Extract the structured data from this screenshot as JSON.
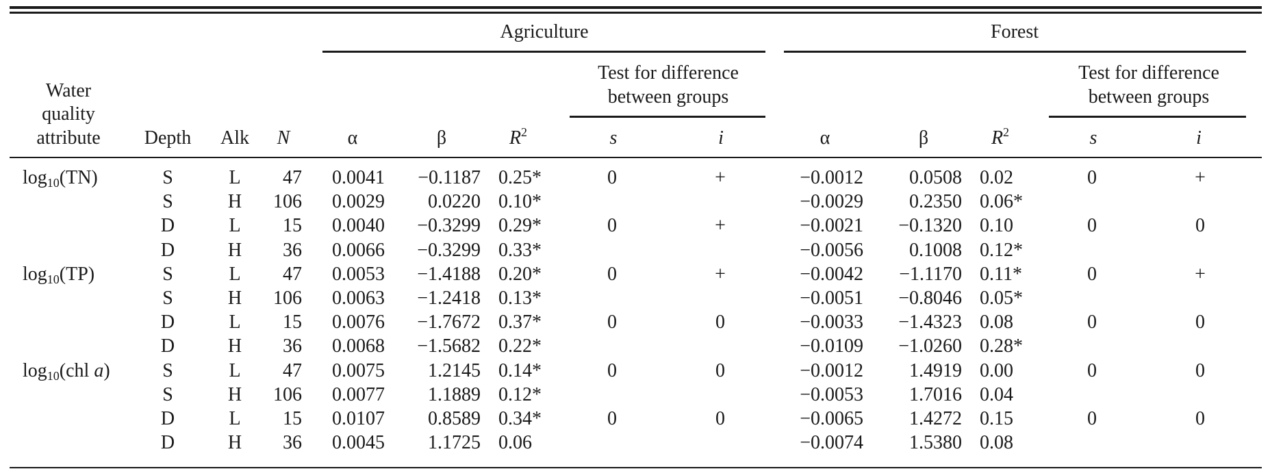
{
  "table": {
    "groups": {
      "agriculture": "Agriculture",
      "forest": "Forest"
    },
    "test_header_line1": "Test for difference",
    "test_header_line2": "between groups",
    "headers": {
      "attribute": [
        "Water",
        "quality",
        "attribute"
      ],
      "depth": "Depth",
      "alk": "Alk",
      "n": "N",
      "alpha": "α",
      "beta": "β",
      "r2": "R",
      "r2_sup": "2",
      "s": "s",
      "i": "i"
    },
    "rows": [
      {
        "attr": {
          "fn": "log",
          "sub": "10",
          "arg": "(TN)"
        },
        "depth": "S",
        "alk": "L",
        "n": "47",
        "ag": {
          "alpha": "0.0041",
          "beta": "−0.1187",
          "r2": "0.25*",
          "s": "0",
          "i": "+"
        },
        "fo": {
          "alpha": "−0.0012",
          "beta": "0.0508",
          "r2": "0.02",
          "s": "0",
          "i": "+"
        }
      },
      {
        "depth": "S",
        "alk": "H",
        "n": "106",
        "ag": {
          "alpha": "0.0029",
          "beta": "0.0220",
          "r2": "0.10*"
        },
        "fo": {
          "alpha": "−0.0029",
          "beta": "0.2350",
          "r2": "0.06*"
        }
      },
      {
        "depth": "D",
        "alk": "L",
        "n": "15",
        "ag": {
          "alpha": "0.0040",
          "beta": "−0.3299",
          "r2": "0.29*",
          "s": "0",
          "i": "+"
        },
        "fo": {
          "alpha": "−0.0021",
          "beta": "−0.1320",
          "r2": "0.10",
          "s": "0",
          "i": "0"
        }
      },
      {
        "depth": "D",
        "alk": "H",
        "n": "36",
        "ag": {
          "alpha": "0.0066",
          "beta": "−0.3299",
          "r2": "0.33*"
        },
        "fo": {
          "alpha": "−0.0056",
          "beta": "0.1008",
          "r2": "0.12*"
        }
      },
      {
        "attr": {
          "fn": "log",
          "sub": "10",
          "arg": "(TP)"
        },
        "depth": "S",
        "alk": "L",
        "n": "47",
        "ag": {
          "alpha": "0.0053",
          "beta": "−1.4188",
          "r2": "0.20*",
          "s": "0",
          "i": "+"
        },
        "fo": {
          "alpha": "−0.0042",
          "beta": "−1.1170",
          "r2": "0.11*",
          "s": "0",
          "i": "+"
        }
      },
      {
        "depth": "S",
        "alk": "H",
        "n": "106",
        "ag": {
          "alpha": "0.0063",
          "beta": "−1.2418",
          "r2": "0.13*"
        },
        "fo": {
          "alpha": "−0.0051",
          "beta": "−0.8046",
          "r2": "0.05*"
        }
      },
      {
        "depth": "D",
        "alk": "L",
        "n": "15",
        "ag": {
          "alpha": "0.0076",
          "beta": "−1.7672",
          "r2": "0.37*",
          "s": "0",
          "i": "0"
        },
        "fo": {
          "alpha": "−0.0033",
          "beta": "−1.4323",
          "r2": "0.08",
          "s": "0",
          "i": "0"
        }
      },
      {
        "depth": "D",
        "alk": "H",
        "n": "36",
        "ag": {
          "alpha": "0.0068",
          "beta": "−1.5682",
          "r2": "0.22*"
        },
        "fo": {
          "alpha": "−0.0109",
          "beta": "−1.0260",
          "r2": "0.28*"
        }
      },
      {
        "attr": {
          "fn": "log",
          "sub": "10",
          "arg": "(chl ",
          "arg_italic": "a",
          "close": ")"
        },
        "depth": "S",
        "alk": "L",
        "n": "47",
        "ag": {
          "alpha": "0.0075",
          "beta": "1.2145",
          "r2": "0.14*",
          "s": "0",
          "i": "0"
        },
        "fo": {
          "alpha": "−0.0012",
          "beta": "1.4919",
          "r2": "0.00",
          "s": "0",
          "i": "0"
        }
      },
      {
        "depth": "S",
        "alk": "H",
        "n": "106",
        "ag": {
          "alpha": "0.0077",
          "beta": "1.1889",
          "r2": "0.12*"
        },
        "fo": {
          "alpha": "−0.0053",
          "beta": "1.7016",
          "r2": "0.04"
        }
      },
      {
        "depth": "D",
        "alk": "L",
        "n": "15",
        "ag": {
          "alpha": "0.0107",
          "beta": "0.8589",
          "r2": "0.34*",
          "s": "0",
          "i": "0"
        },
        "fo": {
          "alpha": "−0.0065",
          "beta": "1.4272",
          "r2": "0.15",
          "s": "0",
          "i": "0"
        }
      },
      {
        "depth": "D",
        "alk": "H",
        "n": "36",
        "ag": {
          "alpha": "0.0045",
          "beta": "1.1725",
          "r2": "0.06"
        },
        "fo": {
          "alpha": "−0.0074",
          "beta": "1.5380",
          "r2": "0.08"
        }
      }
    ]
  }
}
